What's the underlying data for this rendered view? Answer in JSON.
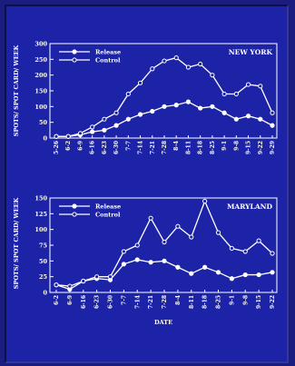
{
  "chart_data": [
    {
      "type": "line",
      "title": "NEW YORK",
      "xlabel": "",
      "ylabel": "SPOTS/ SPOT CARD/ WEEK",
      "ylim": [
        0,
        300
      ],
      "yticks": [
        0,
        50,
        100,
        150,
        200,
        250,
        300
      ],
      "categories": [
        "5-26",
        "6-2",
        "6-9",
        "6-16",
        "6-23",
        "6-30",
        "7-7",
        "7-14",
        "7-21",
        "7-28",
        "8-4",
        "8-11",
        "8-18",
        "8-25",
        "9-1",
        "9-8",
        "9-15",
        "9-22",
        "9-29"
      ],
      "legend_position": "top-left",
      "series": [
        {
          "name": "Release",
          "marker": "filled",
          "values": [
            5,
            5,
            10,
            20,
            25,
            40,
            60,
            75,
            85,
            100,
            105,
            115,
            95,
            100,
            80,
            60,
            70,
            60,
            40
          ]
        },
        {
          "name": "Control",
          "marker": "open",
          "values": [
            5,
            5,
            15,
            35,
            60,
            80,
            140,
            175,
            220,
            245,
            255,
            225,
            235,
            200,
            140,
            140,
            170,
            165,
            80
          ]
        }
      ]
    },
    {
      "type": "line",
      "title": "MARYLAND",
      "xlabel": "DATE",
      "ylabel": "SPOTS/ SPOT CARD/ WEEK",
      "ylim": [
        0,
        150
      ],
      "yticks": [
        0,
        25,
        50,
        75,
        100,
        125,
        150
      ],
      "categories": [
        "6-2",
        "6-9",
        "6-16",
        "6-23",
        "6-30",
        "7-7",
        "7-14",
        "7-21",
        "7-28",
        "8-4",
        "8-11",
        "8-18",
        "8-25",
        "9-1",
        "9-8",
        "9-15",
        "9-22"
      ],
      "legend_position": "top-left",
      "series": [
        {
          "name": "Release",
          "marker": "filled",
          "values": [
            12,
            5,
            18,
            22,
            20,
            45,
            52,
            48,
            50,
            40,
            30,
            40,
            32,
            22,
            28,
            28,
            32
          ]
        },
        {
          "name": "Control",
          "marker": "open",
          "values": [
            12,
            10,
            18,
            25,
            25,
            65,
            75,
            118,
            80,
            105,
            88,
            145,
            95,
            70,
            65,
            82,
            62
          ]
        }
      ]
    }
  ]
}
